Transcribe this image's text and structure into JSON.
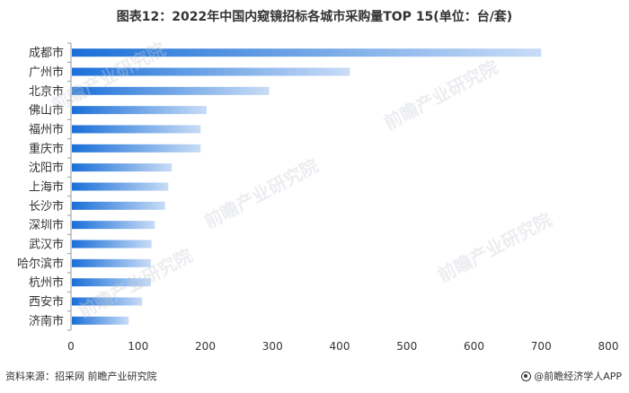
{
  "title": "图表12：2022年中国内窥镜招标各城市采购量TOP 15(单位：台/套)",
  "footer": {
    "source": "资料来源：招采网 前瞻产业研究院",
    "brand": "@前瞻经济学人APP"
  },
  "watermark": {
    "text": "前瞻产业研究院"
  },
  "colors": {
    "bar_start": "#1a6fd8",
    "bar_end": "#c8dcf6",
    "axis": "#999999",
    "text": "#333333"
  },
  "chart_data": {
    "type": "bar",
    "orientation": "horizontal",
    "categories": [
      "成都市",
      "广州市",
      "北京市",
      "佛山市",
      "福州市",
      "重庆市",
      "沈阳市",
      "上海市",
      "长沙市",
      "深圳市",
      "武汉市",
      "哈尔滨市",
      "杭州市",
      "西安市",
      "济南市"
    ],
    "values": [
      700,
      415,
      295,
      202,
      193,
      193,
      150,
      145,
      140,
      125,
      120,
      119,
      119,
      106,
      86
    ],
    "xlim": [
      0,
      800
    ],
    "xticks": [
      "0",
      "100",
      "200",
      "300",
      "400",
      "500",
      "600",
      "700",
      "800"
    ],
    "grid": false,
    "legend": "none"
  }
}
